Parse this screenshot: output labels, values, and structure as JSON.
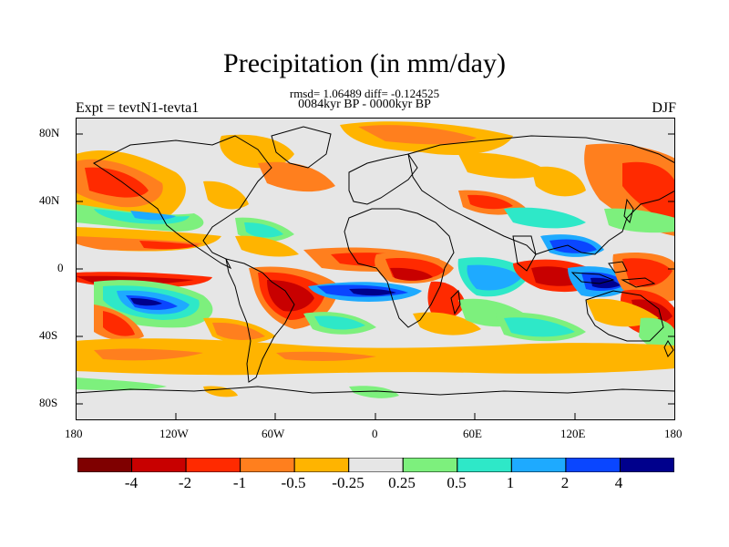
{
  "title": "Precipitation (in mm/day)",
  "stats_line": "rmsd= 1.06489 diff= -0.124525",
  "period_line": "0084kyr BP - 0000kyr BP",
  "experiment_label": "Expt = tevtN1-tevta1",
  "season_label": "DJF",
  "lat_labels": [
    "80N",
    "40N",
    "0",
    "40S",
    "80S"
  ],
  "lon_labels": [
    "180",
    "120W",
    "60W",
    "0",
    "60E",
    "120E",
    "180"
  ],
  "colorbar": {
    "colors": [
      "#7f0000",
      "#c80000",
      "#ff2a00",
      "#ff7f1e",
      "#ffb400",
      "#e6e6e6",
      "#7df07d",
      "#2ee8c8",
      "#1eaaff",
      "#0a46ff",
      "#00008c"
    ],
    "labels": [
      "-4",
      "-2",
      "-1",
      "-0.5",
      "-0.25",
      "0.25",
      "0.5",
      "1",
      "2",
      "4"
    ]
  }
}
